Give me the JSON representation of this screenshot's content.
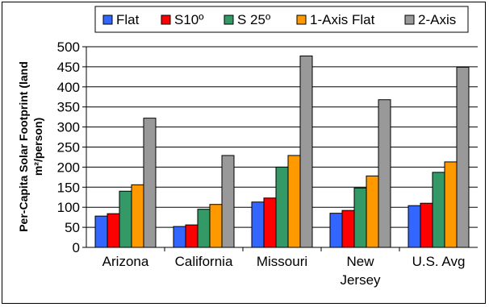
{
  "chart_data": {
    "type": "bar",
    "categories": [
      "Arizona",
      "California",
      "Missouri",
      "New Jersey",
      "U.S. Avg"
    ],
    "category_lines": [
      [
        "Arizona"
      ],
      [
        "California"
      ],
      [
        "Missouri"
      ],
      [
        "New",
        "Jersey"
      ],
      [
        "U.S. Avg"
      ]
    ],
    "series": [
      {
        "name": "Flat",
        "color": "#3366ff",
        "values": [
          78,
          52,
          113,
          85,
          104
        ]
      },
      {
        "name": "S10º",
        "color": "#ff0000",
        "values": [
          84,
          56,
          123,
          92,
          110
        ]
      },
      {
        "name": "S 25º",
        "color": "#339966",
        "values": [
          140,
          95,
          200,
          148,
          187
        ]
      },
      {
        "name": "1-Axis Flat",
        "color": "#ff9900",
        "values": [
          156,
          107,
          229,
          178,
          213
        ]
      },
      {
        "name": "2-Axis",
        "color": "#999999",
        "values": [
          322,
          229,
          477,
          368,
          449
        ]
      }
    ],
    "title": "",
    "xlabel": "",
    "ylabel": "Per-Capita Solar Footprint (land m²/person)",
    "ylabel_lines": [
      "Per-Capita Solar Footprint (land",
      "m²/person)"
    ],
    "ylim": [
      0,
      500
    ],
    "ytick_step": 50,
    "grid": true,
    "legend_position": "top"
  }
}
